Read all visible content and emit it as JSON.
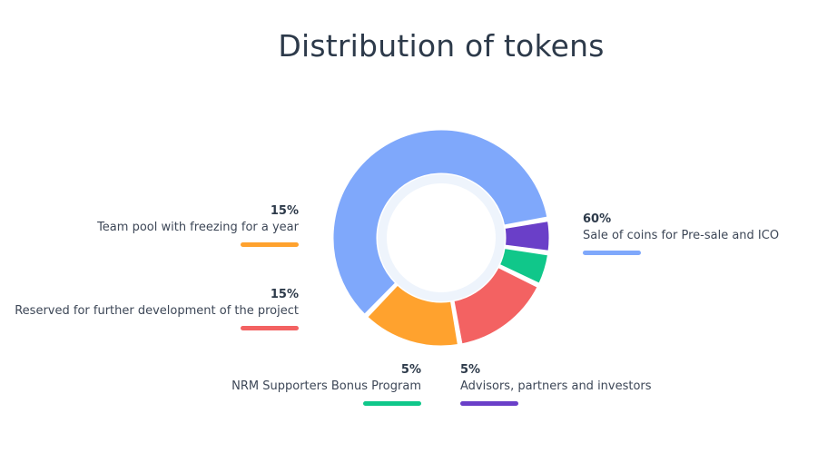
{
  "title": "Distribution of tokens",
  "chart_data": {
    "type": "pie",
    "variant": "donut",
    "title": "Distribution of tokens",
    "slices": [
      {
        "label": "Sale of coins for Pre-sale and ICO",
        "value": 60,
        "value_label": "60%",
        "color": "#7fa8fb"
      },
      {
        "label": "Advisors, partners and investors",
        "value": 5,
        "value_label": "5%",
        "color": "#6a3fc8"
      },
      {
        "label": "NRM Supporters Bonus Program",
        "value": 5,
        "value_label": "5%",
        "color": "#10c78a"
      },
      {
        "label": "Reserved for further development of the project",
        "value": 15,
        "value_label": "15%",
        "color": "#f36262"
      },
      {
        "label": "Team pool with freezing for a year",
        "value": 15,
        "value_label": "15%",
        "color": "#ffa22e"
      }
    ],
    "inner_ring_color": "#eef4fc"
  }
}
